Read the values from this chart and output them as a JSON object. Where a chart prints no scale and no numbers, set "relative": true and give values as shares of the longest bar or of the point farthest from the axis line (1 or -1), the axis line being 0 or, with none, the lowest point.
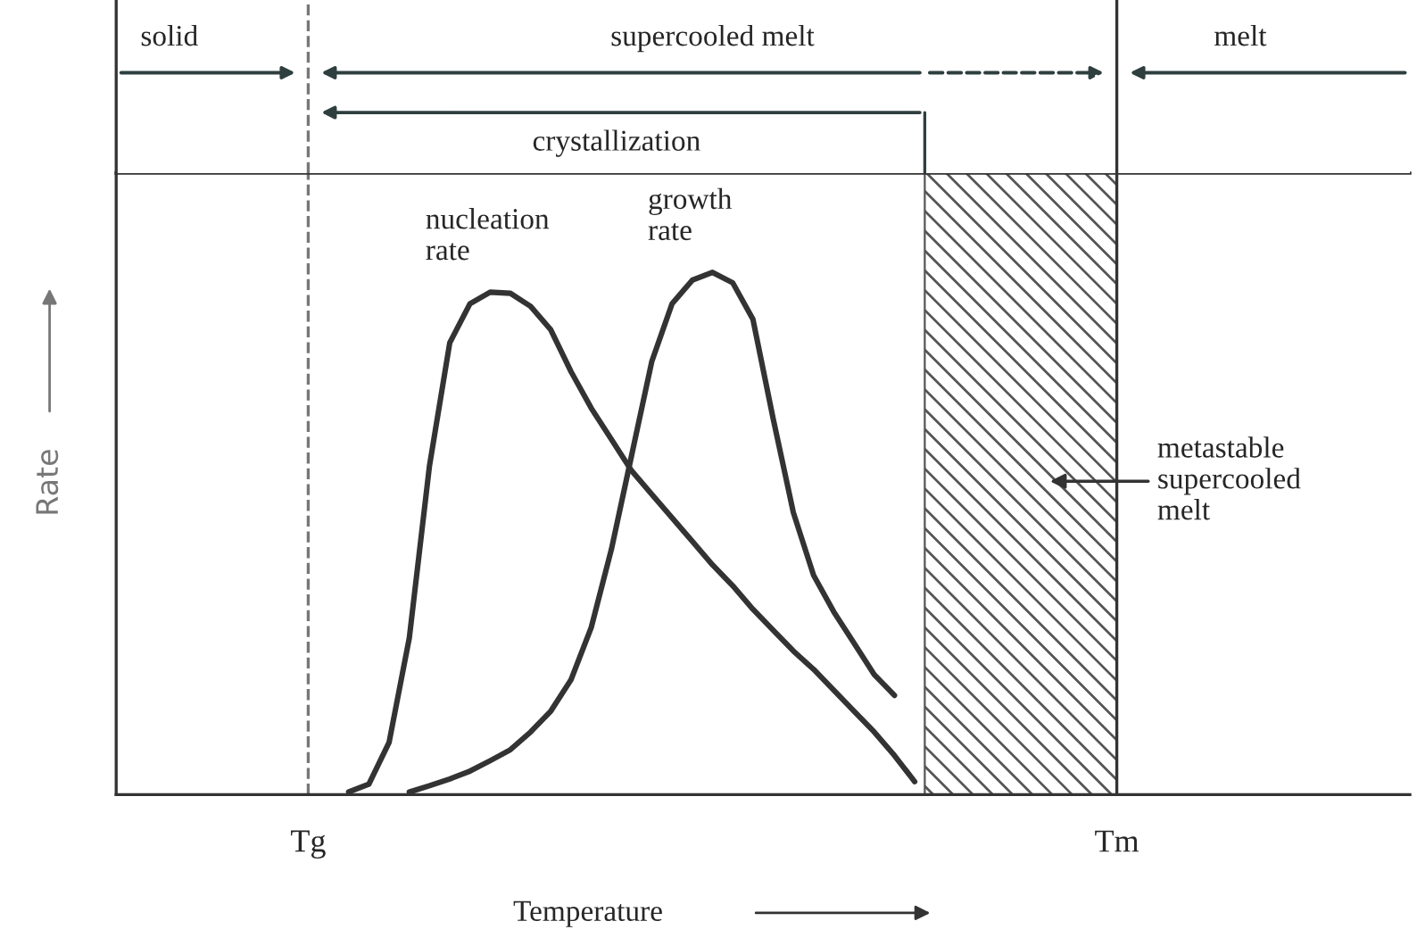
{
  "chart_data": {
    "type": "line",
    "relative": true,
    "xlabel": "Temperature",
    "ylabel": "Rate",
    "categories": [
      null,
      null,
      null,
      null,
      null,
      null,
      null,
      null,
      null,
      "Tg",
      null,
      null,
      null,
      null,
      null,
      null,
      null,
      null,
      null,
      null,
      null,
      null,
      null,
      null,
      null,
      null,
      null,
      null,
      null,
      null,
      null,
      null,
      null,
      null,
      null,
      null,
      null,
      null,
      null,
      null,
      null,
      null,
      null,
      null,
      null,
      null,
      null,
      null,
      null,
      "Tm",
      null,
      null,
      null,
      null,
      null,
      null,
      null,
      null,
      null,
      null,
      null,
      null,
      null,
      null
    ],
    "grid": false,
    "legend": false,
    "marker": "none",
    "line_style": "solid",
    "series": [
      {
        "name": "nucleation rate",
        "color": "#333333",
        "values": [
          null,
          null,
          null,
          null,
          null,
          null,
          null,
          null,
          null,
          null,
          null,
          0.005,
          0.02,
          0.1,
          0.3,
          0.63,
          0.865,
          0.94,
          0.962,
          0.96,
          0.935,
          0.89,
          0.81,
          0.74,
          0.68,
          0.62,
          0.575,
          0.53,
          0.485,
          0.44,
          0.4,
          0.355,
          0.315,
          0.275,
          0.24,
          0.2,
          0.16,
          0.12,
          0.075,
          0.025,
          null,
          null,
          null,
          null,
          null,
          null,
          null,
          null,
          null,
          null,
          null,
          null,
          null,
          null,
          null,
          null,
          null,
          null,
          null,
          null,
          null,
          null,
          null,
          null
        ]
      },
      {
        "name": "growth rate",
        "color": "#333333",
        "values": [
          null,
          null,
          null,
          null,
          null,
          null,
          null,
          null,
          null,
          null,
          null,
          null,
          null,
          null,
          0.005,
          0.017,
          0.03,
          0.045,
          0.065,
          0.086,
          0.12,
          0.16,
          0.22,
          0.32,
          0.47,
          0.65,
          0.83,
          0.94,
          0.985,
          1,
          0.98,
          0.91,
          0.72,
          0.54,
          0.42,
          0.35,
          0.29,
          0.23,
          0.19,
          null,
          null,
          null,
          null,
          null,
          null,
          null,
          null,
          null,
          null,
          null,
          null,
          null,
          null,
          null,
          null,
          null,
          null,
          null,
          null,
          null,
          null,
          null,
          null,
          null
        ]
      }
    ],
    "ref_lines": [
      {
        "axis": "x",
        "value": "Tg",
        "color": "#777777",
        "line_style": "dashed"
      },
      {
        "axis": "x",
        "value": "Tm",
        "color": "#333333",
        "line_style": "solid"
      }
    ],
    "annotations": [
      "solid",
      "supercooled melt",
      "melt",
      "crystallization",
      "metastable\nsupercooled\nmelt"
    ]
  }
}
